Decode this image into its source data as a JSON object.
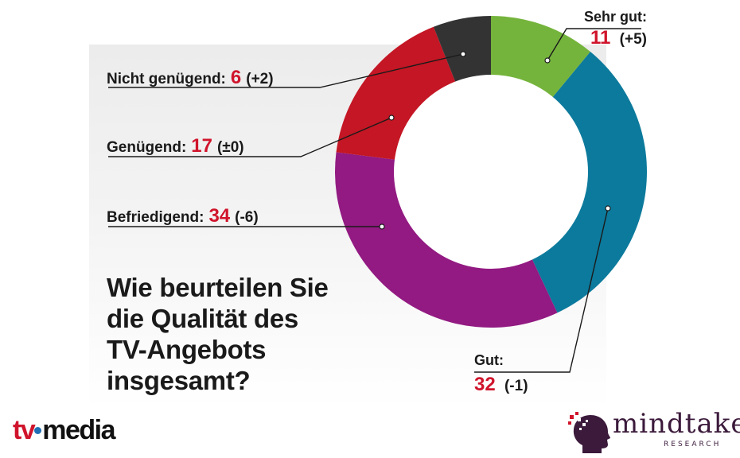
{
  "question": {
    "lines": [
      "Wie beurteilen Sie",
      "die Qualität des",
      "TV-Angebots",
      "insgesamt?"
    ]
  },
  "chart_data": {
    "type": "pie",
    "donut": true,
    "title": "Wie beurteilen Sie die Qualität des TV-Angebots insgesamt?",
    "slices": [
      {
        "label": "Sehr gut:",
        "value": 11,
        "change": "(+5)",
        "color": "#75b43c"
      },
      {
        "label": "Gut:",
        "value": 32,
        "change": "(-1)",
        "color": "#0c7a9c"
      },
      {
        "label": "Befriedigend:",
        "value": 34,
        "change": "(-6)",
        "color": "#921a82"
      },
      {
        "label": "Genügend:",
        "value": 17,
        "change": "(±0)",
        "color": "#c41624"
      },
      {
        "label": "Nicht genügend:",
        "value": 6,
        "change": "(+2)",
        "color": "#333333"
      }
    ]
  },
  "logos": {
    "left": {
      "tv": "tv",
      "media": "media"
    },
    "right": {
      "word": "mindtake",
      "sub": "RESEARCH"
    }
  }
}
